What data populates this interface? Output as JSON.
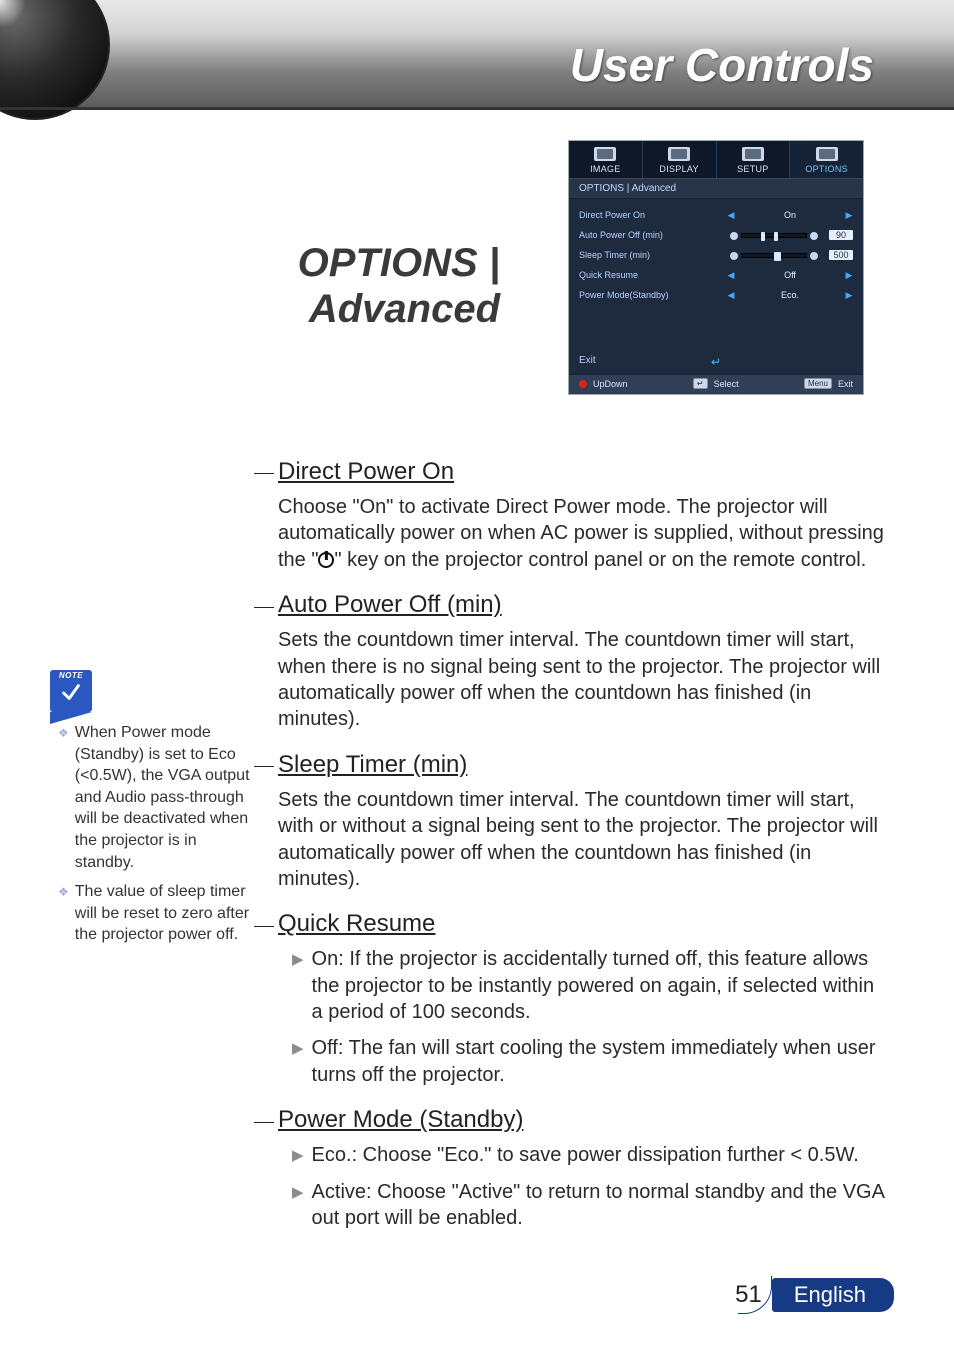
{
  "banner": {
    "title": "User Controls"
  },
  "section": {
    "title_line1": "OPTIONS |",
    "title_line2": "Advanced"
  },
  "osd": {
    "tabs": [
      {
        "label": "IMAGE"
      },
      {
        "label": "DISPLAY"
      },
      {
        "label": "SETUP"
      },
      {
        "label": "OPTIONS"
      }
    ],
    "active_tab_index": 3,
    "breadcrumb": "OPTIONS  |  Advanced",
    "rows": [
      {
        "label": "Direct Power On",
        "type": "enum",
        "value": "On"
      },
      {
        "label": "Auto Power Off (min)",
        "type": "slider",
        "value": "90",
        "thumb_pct": 30
      },
      {
        "label": "Sleep Timer (min)",
        "type": "slider",
        "value": "500",
        "thumb_pct": 55
      },
      {
        "label": "Quick Resume",
        "type": "enum",
        "value": "Off"
      },
      {
        "label": "Power Mode(Standby)",
        "type": "enum",
        "value": "Eco."
      }
    ],
    "exit_label": "Exit",
    "footer": {
      "updown": "UpDown",
      "select": "Select",
      "select_key": "↵",
      "exit": "Exit",
      "exit_key": "Menu"
    },
    "colors": {
      "bg": "#1e2a3e",
      "row_text": "#b8d4ff",
      "arrow": "#3fa8ff",
      "footer_bg": "#303e56",
      "numbox_bg": "#e8eef8"
    }
  },
  "topics": [
    {
      "heading": "Direct Power On",
      "body_pre": "Choose \"On\" to activate Direct Power mode. The projector will automatically power on when AC power is supplied, without pressing the \"",
      "body_post": "\" key on the projector control panel or on the remote control.",
      "has_power_glyph": true
    },
    {
      "heading": "Auto Power Off (min)",
      "body": "Sets the countdown timer interval. The countdown timer will start, when there is no signal being sent to the projector. The projector will automatically power off when the countdown has finished (in minutes)."
    },
    {
      "heading": "Sleep Timer (min)",
      "body": "Sets the countdown timer interval. The countdown timer will start, with or without a signal being sent to the projector. The projector will automatically power off when the countdown has finished (in minutes)."
    },
    {
      "heading": "Quick Resume",
      "bullets": [
        "On: If the projector is accidentally turned off, this feature allows the projector to be instantly powered on again, if selected within a period of 100 seconds.",
        "Off: The fan will start cooling the system immediately when user turns off the projector."
      ]
    },
    {
      "heading": "Power Mode (Standby)",
      "bullets": [
        "Eco.: Choose \"Eco.\" to save power dissipation further < 0.5W.",
        "Active: Choose \"Active\" to return to normal standby and the VGA out port will be enabled."
      ]
    }
  ],
  "sidebar": {
    "note_label": "NOTE",
    "items": [
      "When Power mode (Standby) is set to Eco (<0.5W), the VGA output and Audio pass-through will be deactivated when the projector is in standby.",
      "The value of sleep timer will be reset to zero after the  projector power off."
    ]
  },
  "footer": {
    "page": "51",
    "language": "English"
  }
}
